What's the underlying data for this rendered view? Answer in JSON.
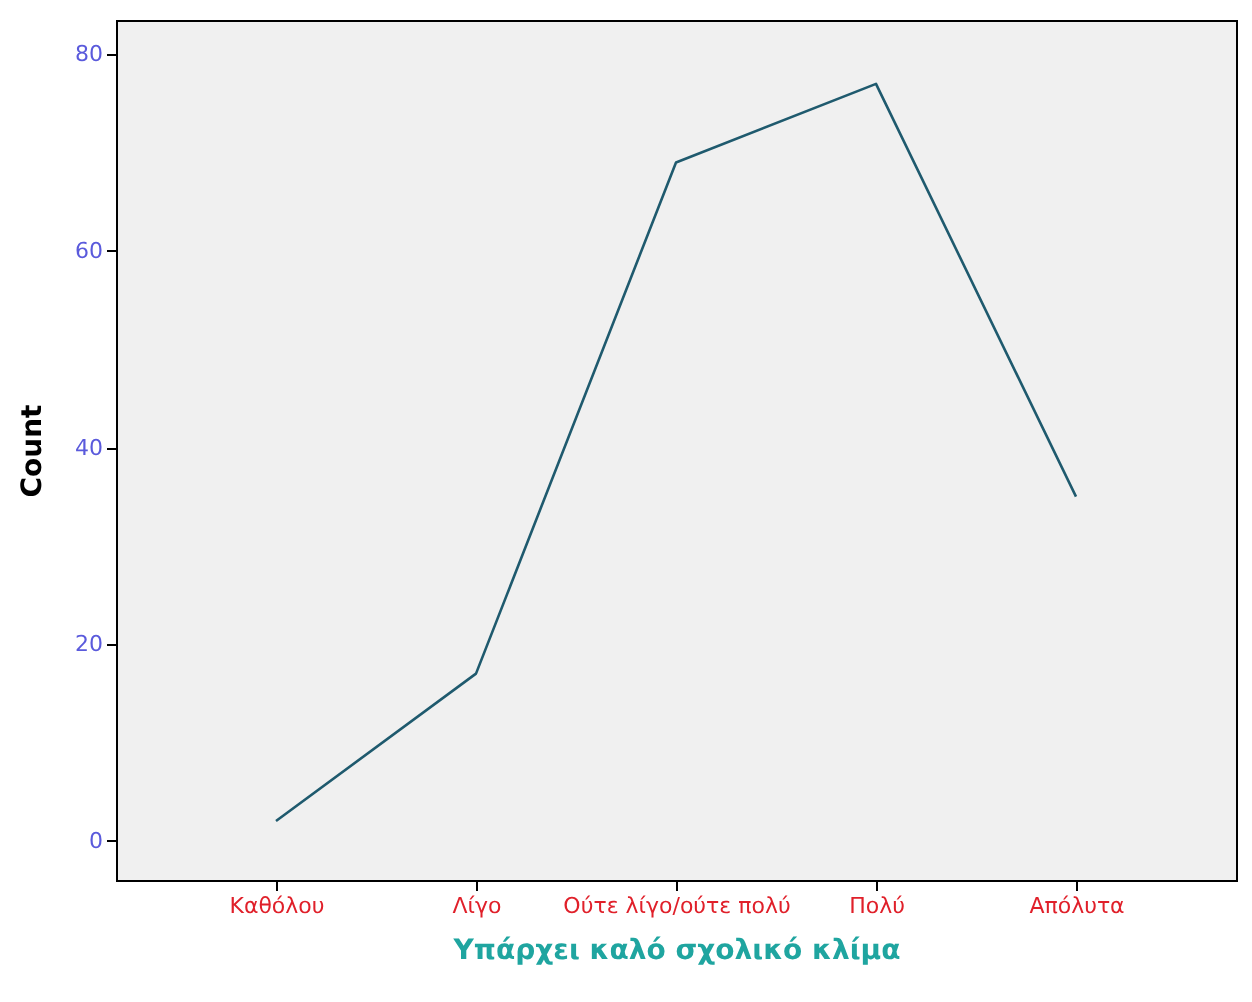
{
  "chart_data": {
    "type": "line",
    "xlabel": "Υπάρχει καλό σχολικό κλίμα",
    "ylabel": "Count",
    "categories": [
      "Καθόλου",
      "Λίγο",
      "Ούτε λίγο/ούτε πολύ",
      "Πολύ",
      "Απόλυτα"
    ],
    "series": [
      {
        "color": "#1f5a6e",
        "values": [
          2,
          17,
          69,
          77,
          35
        ]
      }
    ],
    "ylim": [
      -4,
      83.5
    ],
    "yticks": [
      0,
      20,
      40,
      60,
      80
    ],
    "grid": false,
    "marker": "none",
    "line_style": "solid"
  }
}
